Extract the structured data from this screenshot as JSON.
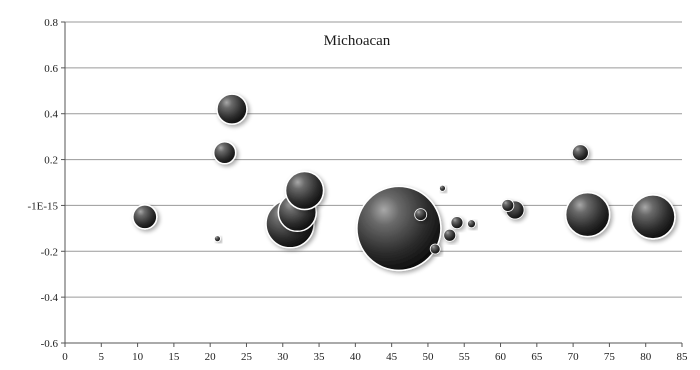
{
  "chart_data": {
    "type": "bubble",
    "title": "Michoacan",
    "xlabel": "",
    "ylabel": "",
    "xlim": [
      0,
      85
    ],
    "ylim": [
      -0.6,
      0.8
    ],
    "x_ticks": [
      "0",
      "5",
      "10",
      "15",
      "20",
      "25",
      "30",
      "35",
      "40",
      "45",
      "50",
      "55",
      "60",
      "65",
      "70",
      "75",
      "80",
      "85"
    ],
    "y_ticks": [
      {
        "value": 0.8,
        "label": "0.8"
      },
      {
        "value": 0.6,
        "label": "0.6"
      },
      {
        "value": 0.4,
        "label": "0.4"
      },
      {
        "value": 0.2,
        "label": "0.2"
      },
      {
        "value": 0.0,
        "label": "-1E-15"
      },
      {
        "value": -0.2,
        "label": "-0.2"
      },
      {
        "value": -0.4,
        "label": "-0.4"
      },
      {
        "value": -0.6,
        "label": "-0.6"
      }
    ],
    "grid": "horizontal",
    "legend": "none",
    "bubble_color": "#3a3a3a",
    "points": [
      {
        "x": 11,
        "y": -0.05,
        "size": 12
      },
      {
        "x": 21,
        "y": -0.145,
        "size": 3
      },
      {
        "x": 22,
        "y": 0.23,
        "size": 11
      },
      {
        "x": 23,
        "y": 0.42,
        "size": 15
      },
      {
        "x": 31,
        "y": -0.08,
        "size": 24
      },
      {
        "x": 32,
        "y": -0.03,
        "size": 19
      },
      {
        "x": 33,
        "y": 0.065,
        "size": 19
      },
      {
        "x": 46,
        "y": -0.1,
        "size": 42
      },
      {
        "x": 49,
        "y": -0.04,
        "size": 6
      },
      {
        "x": 51,
        "y": -0.19,
        "size": 5
      },
      {
        "x": 52,
        "y": 0.075,
        "size": 3
      },
      {
        "x": 53,
        "y": -0.13,
        "size": 6
      },
      {
        "x": 54,
        "y": -0.075,
        "size": 6
      },
      {
        "x": 56,
        "y": -0.08,
        "size": 4
      },
      {
        "x": 61,
        "y": 0.0,
        "size": 6
      },
      {
        "x": 62,
        "y": -0.02,
        "size": 9
      },
      {
        "x": 71,
        "y": 0.23,
        "size": 8
      },
      {
        "x": 72,
        "y": -0.04,
        "size": 22
      },
      {
        "x": 81,
        "y": -0.05,
        "size": 22
      }
    ]
  }
}
